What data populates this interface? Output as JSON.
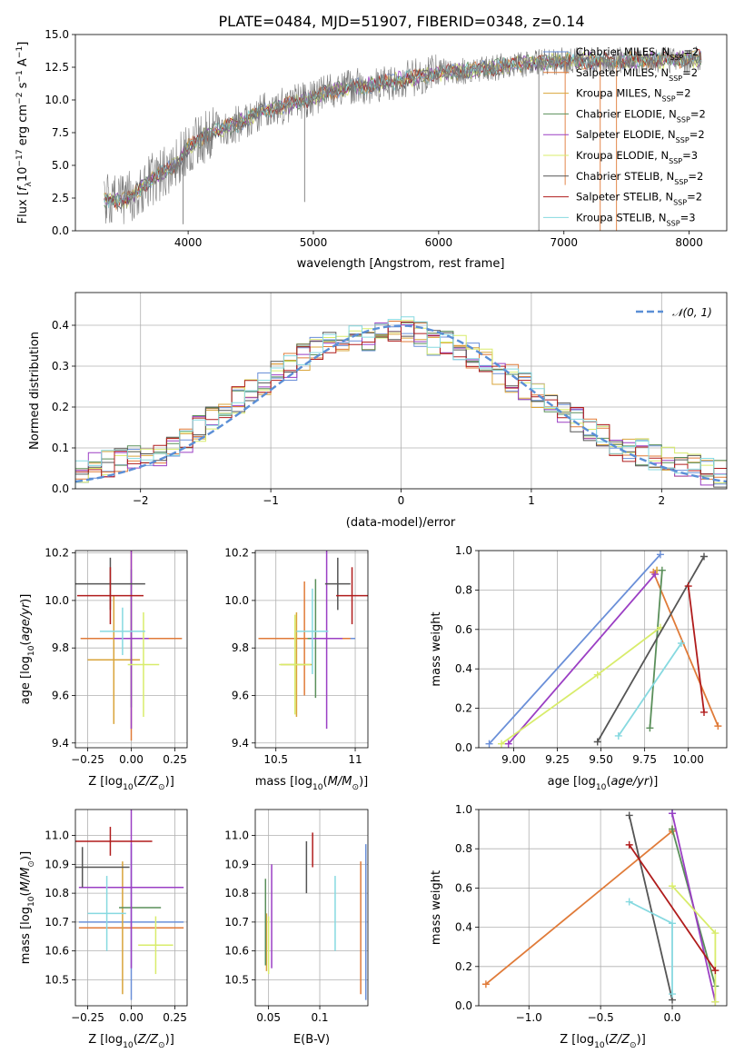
{
  "figure": {
    "title": "PLATE=0484, MJD=51907, FIBERID=0348, z=0.14"
  },
  "colors": [
    "#6a8fd8",
    "#e07b39",
    "#d9a43a",
    "#5a8f5a",
    "#9b3fc4",
    "#d8ec6b",
    "#555555",
    "#b01c1c",
    "#86d9e0"
  ],
  "chart_data": [
    {
      "type": "line",
      "title": "PLATE=0484, MJD=51907, FIBERID=0348, z=0.14",
      "xlabel": "wavelength [Angstrom, rest frame]",
      "ylabel": "Flux [f_λ 10^-17 erg cm^-2 s^-1 A^-1]",
      "xlim": [
        3100,
        8300
      ],
      "ylim": [
        0,
        15
      ],
      "xticks": [
        4000,
        5000,
        6000,
        7000,
        8000
      ],
      "yticks": [
        0.0,
        2.5,
        5.0,
        7.5,
        10.0,
        12.5,
        15.0
      ],
      "legend_position": "upper-right",
      "data_spectrum": {
        "name": "data",
        "x": [
          3330,
          3500,
          3700,
          3900,
          4000,
          4200,
          4400,
          4600,
          4800,
          5000,
          5200,
          5500,
          5800,
          6000,
          6300,
          6600,
          7000,
          7400,
          8000,
          8100
        ],
        "y": [
          2.4,
          2.3,
          3.9,
          5.0,
          6.4,
          7.6,
          8.2,
          9.2,
          9.6,
          10.2,
          10.8,
          11.2,
          11.7,
          12.1,
          12.3,
          12.7,
          13.0,
          13.0,
          13.1,
          13.2
        ]
      },
      "models": [
        {
          "name": "Chabrier MILES, N_SSP=2",
          "label_base": "Chabrier MILES, N",
          "label_sub": "SSP",
          "label_suffix": "=2",
          "color": "#6a8fd8"
        },
        {
          "name": "Salpeter MILES, N_SSP=2",
          "label_base": "Salpeter MILES, N",
          "label_sub": "SSP",
          "label_suffix": "=2",
          "color": "#e07b39"
        },
        {
          "name": "Kroupa MILES, N_SSP=2",
          "label_base": "Kroupa MILES, N",
          "label_sub": "SSP",
          "label_suffix": "=2",
          "color": "#d9a43a"
        },
        {
          "name": "Chabrier ELODIE, N_SSP=2",
          "label_base": "Chabrier ELODIE, N",
          "label_sub": "SSP",
          "label_suffix": "=2",
          "color": "#5a8f5a"
        },
        {
          "name": "Salpeter ELODIE, N_SSP=2",
          "label_base": "Salpeter ELODIE, N",
          "label_sub": "SSP",
          "label_suffix": "=2",
          "color": "#9b3fc4"
        },
        {
          "name": "Kroupa ELODIE, N_SSP=3",
          "label_base": "Kroupa ELODIE, N",
          "label_sub": "SSP",
          "label_suffix": "=3",
          "color": "#d8ec6b"
        },
        {
          "name": "Chabrier STELIB, N_SSP=2",
          "label_base": "Chabrier STELIB, N",
          "label_sub": "SSP",
          "label_suffix": "=2",
          "color": "#555555"
        },
        {
          "name": "Salpeter STELIB, N_SSP=2",
          "label_base": "Salpeter STELIB, N",
          "label_sub": "SSP",
          "label_suffix": "=2",
          "color": "#b01c1c"
        },
        {
          "name": "Kroupa STELIB, N_SSP=3",
          "label_base": "Kroupa STELIB, N",
          "label_sub": "SSP",
          "label_suffix": "=3",
          "color": "#86d9e0"
        }
      ]
    },
    {
      "type": "line",
      "xlabel": "(data-model)/error",
      "ylabel": "Normed distribution",
      "xlim": [
        -2.5,
        2.5
      ],
      "ylim": [
        0,
        0.48
      ],
      "xticks": [
        -2,
        -1,
        0,
        1,
        2
      ],
      "yticks": [
        0.0,
        0.1,
        0.2,
        0.3,
        0.4
      ],
      "grid": true,
      "legend_position": "upper-right",
      "reference_curve": {
        "name": "N(0,1)",
        "label": "𝒩(0, 1)",
        "color": "#5b8fd6",
        "mean": 0,
        "sigma": 1
      },
      "histogram_envelope": {
        "bins": [
          -2.5,
          -2.4,
          -2.3,
          -2.2,
          -2.1,
          -2.0,
          -1.9,
          -1.8,
          -1.7,
          -1.6,
          -1.5,
          -1.4,
          -1.3,
          -1.2,
          -1.1,
          -1.0,
          -0.9,
          -0.8,
          -0.7,
          -0.6,
          -0.5,
          -0.4,
          -0.3,
          -0.2,
          -0.1,
          0.0,
          0.1,
          0.2,
          0.3,
          0.4,
          0.5,
          0.6,
          0.7,
          0.8,
          0.9,
          1.0,
          1.1,
          1.2,
          1.3,
          1.4,
          1.5,
          1.6,
          1.7,
          1.8,
          1.9,
          2.0,
          2.1,
          2.2,
          2.3,
          2.4,
          2.5
        ],
        "heights": [
          0.05,
          0.055,
          0.06,
          0.07,
          0.075,
          0.08,
          0.09,
          0.1,
          0.12,
          0.15,
          0.18,
          0.2,
          0.22,
          0.24,
          0.26,
          0.28,
          0.3,
          0.32,
          0.34,
          0.35,
          0.37,
          0.38,
          0.37,
          0.38,
          0.38,
          0.39,
          0.38,
          0.36,
          0.36,
          0.35,
          0.33,
          0.31,
          0.29,
          0.27,
          0.25,
          0.23,
          0.21,
          0.19,
          0.17,
          0.15,
          0.13,
          0.11,
          0.1,
          0.09,
          0.08,
          0.07,
          0.06,
          0.05,
          0.04,
          0.035
        ]
      }
    },
    {
      "type": "scatter",
      "xlabel": "Z [log10(Z/Z☉)]",
      "ylabel": "age [log10(age/yr)]",
      "xlim": [
        -0.32,
        0.32
      ],
      "ylim": [
        9.38,
        10.21
      ],
      "xticks": [
        -0.25,
        0.0,
        0.25
      ],
      "xtick_labels": [
        "−0.25",
        "0.00",
        "0.25"
      ],
      "yticks": [
        9.4,
        9.6,
        9.8,
        10.0,
        10.2
      ],
      "grid": true,
      "errorbars": [
        {
          "x": 0.0,
          "xerr": 0.29,
          "y": 9.84,
          "yerr": 0.0,
          "color": "#6a8fd8"
        },
        {
          "x": 0.0,
          "xerr": 0.29,
          "y": 9.84,
          "yerr": 0.43,
          "color": "#e07b39"
        },
        {
          "x": -0.1,
          "xerr": 0.15,
          "y": 9.75,
          "yerr": 0.27,
          "color": "#d9a43a"
        },
        {
          "x": 0.0,
          "xerr": 0.0,
          "y": 9.84,
          "yerr": 0.29,
          "color": "#5a8f5a"
        },
        {
          "x": 0.0,
          "xerr": 0.1,
          "y": 9.84,
          "yerr": 0.38,
          "color": "#9b3fc4"
        },
        {
          "x": 0.07,
          "xerr": 0.09,
          "y": 9.73,
          "yerr": 0.22,
          "color": "#d8ec6b"
        },
        {
          "x": -0.12,
          "xerr": 0.2,
          "y": 10.07,
          "yerr": 0.11,
          "color": "#555555"
        },
        {
          "x": -0.12,
          "xerr": 0.19,
          "y": 10.02,
          "yerr": 0.12,
          "color": "#b01c1c"
        },
        {
          "x": -0.05,
          "xerr": 0.13,
          "y": 9.87,
          "yerr": 0.1,
          "color": "#86d9e0"
        }
      ]
    },
    {
      "type": "scatter",
      "xlabel": "mass [log10(M/M☉)]",
      "xlim": [
        10.37,
        11.08
      ],
      "ylim": [
        9.38,
        10.21
      ],
      "xticks": [
        10.5,
        11.0
      ],
      "yticks": [
        9.4,
        9.6,
        9.8,
        10.0,
        10.2
      ],
      "grid": true,
      "errorbars": [
        {
          "x": 10.7,
          "xerr": 0.3,
          "y": 9.84,
          "yerr": 0.0,
          "color": "#6a8fd8"
        },
        {
          "x": 10.68,
          "xerr": 0.29,
          "y": 9.84,
          "yerr": 0.24,
          "color": "#e07b39"
        },
        {
          "x": 10.63,
          "xerr": 0.1,
          "y": 9.73,
          "yerr": 0.22,
          "color": "#d9a43a"
        },
        {
          "x": 10.75,
          "xerr": 0.05,
          "y": 9.84,
          "yerr": 0.25,
          "color": "#5a8f5a"
        },
        {
          "x": 10.82,
          "xerr": 0.1,
          "y": 9.84,
          "yerr": 0.38,
          "color": "#9b3fc4"
        },
        {
          "x": 10.62,
          "xerr": 0.1,
          "y": 9.73,
          "yerr": 0.21,
          "color": "#d8ec6b"
        },
        {
          "x": 10.89,
          "xerr": 0.08,
          "y": 10.07,
          "yerr": 0.11,
          "color": "#555555"
        },
        {
          "x": 10.98,
          "xerr": 0.1,
          "y": 10.02,
          "yerr": 0.12,
          "color": "#b01c1c"
        },
        {
          "x": 10.73,
          "xerr": 0.1,
          "y": 9.87,
          "yerr": 0.18,
          "color": "#86d9e0"
        }
      ]
    },
    {
      "type": "line",
      "xlabel": "age [log10(age/yr)]",
      "ylabel": "mass weight",
      "xlim": [
        8.8,
        10.22
      ],
      "ylim": [
        0.0,
        1.0
      ],
      "xticks": [
        9.0,
        9.25,
        9.5,
        9.75,
        10.0
      ],
      "xtick_labels": [
        "9.00",
        "9.25",
        "9.50",
        "9.75",
        "10.00"
      ],
      "yticks": [
        0.0,
        0.2,
        0.4,
        0.6,
        0.8,
        1.0
      ],
      "grid": true,
      "series": [
        {
          "color": "#6a8fd8",
          "x": [
            8.86,
            9.84
          ],
          "y": [
            0.02,
            0.98
          ]
        },
        {
          "color": "#e07b39",
          "x": [
            9.8,
            10.17
          ],
          "y": [
            0.89,
            0.11
          ]
        },
        {
          "color": "#d9a43a",
          "x": [
            9.82,
            9.82
          ],
          "y": [
            0.9,
            0.9
          ]
        },
        {
          "color": "#5a8f5a",
          "x": [
            9.78,
            9.85
          ],
          "y": [
            0.1,
            0.9
          ]
        },
        {
          "color": "#9b3fc4",
          "x": [
            8.97,
            9.81
          ],
          "y": [
            0.02,
            0.88
          ]
        },
        {
          "color": "#d8ec6b",
          "x": [
            8.93,
            9.48,
            9.84
          ],
          "y": [
            0.02,
            0.37,
            0.61
          ]
        },
        {
          "color": "#555555",
          "x": [
            9.48,
            10.09
          ],
          "y": [
            0.03,
            0.97
          ]
        },
        {
          "color": "#b01c1c",
          "x": [
            10.0,
            10.09
          ],
          "y": [
            0.82,
            0.18
          ]
        },
        {
          "color": "#86d9e0",
          "x": [
            9.6,
            9.96
          ],
          "y": [
            0.06,
            0.53
          ]
        }
      ]
    },
    {
      "type": "scatter",
      "xlabel": "Z [log10(Z/Z☉)]",
      "ylabel": "mass [log10(M/M☉)]",
      "xlim": [
        -0.32,
        0.32
      ],
      "ylim": [
        10.41,
        11.09
      ],
      "xticks": [
        -0.25,
        0.0,
        0.25
      ],
      "xtick_labels": [
        "−0.25",
        "0.00",
        "0.25"
      ],
      "yticks": [
        10.5,
        10.6,
        10.7,
        10.8,
        10.9,
        11.0
      ],
      "grid": true,
      "errorbars": [
        {
          "x": 0.0,
          "xerr": 0.3,
          "y": 10.7,
          "yerr": 0.27,
          "color": "#6a8fd8"
        },
        {
          "x": 0.0,
          "xerr": 0.3,
          "y": 10.68,
          "yerr": 0.0,
          "color": "#e07b39"
        },
        {
          "x": -0.05,
          "xerr": 0.0,
          "y": 10.68,
          "yerr": 0.23,
          "color": "#d9a43a"
        },
        {
          "x": 0.05,
          "xerr": 0.12,
          "y": 10.75,
          "yerr": 0.0,
          "color": "#5a8f5a"
        },
        {
          "x": 0.0,
          "xerr": 0.3,
          "y": 10.82,
          "yerr": 0.28,
          "color": "#9b3fc4"
        },
        {
          "x": 0.14,
          "xerr": 0.1,
          "y": 10.62,
          "yerr": 0.1,
          "color": "#d8ec6b"
        },
        {
          "x": -0.28,
          "xerr": 0.27,
          "y": 10.89,
          "yerr": 0.07,
          "color": "#555555"
        },
        {
          "x": -0.12,
          "xerr": 0.24,
          "y": 10.98,
          "yerr": 0.05,
          "color": "#b01c1c"
        },
        {
          "x": -0.14,
          "xerr": 0.11,
          "y": 10.73,
          "yerr": 0.13,
          "color": "#86d9e0"
        }
      ]
    },
    {
      "type": "scatter",
      "xlabel": "E(B-V)",
      "xlim": [
        0.037,
        0.147
      ],
      "ylim": [
        10.41,
        11.09
      ],
      "xticks": [
        0.05,
        0.1
      ],
      "yticks": [
        10.5,
        10.6,
        10.7,
        10.8,
        10.9,
        11.0
      ],
      "grid": true,
      "errorbars": [
        {
          "x": 0.145,
          "xerr": 0.0,
          "y": 10.7,
          "yerr": 0.27,
          "color": "#6a8fd8"
        },
        {
          "x": 0.14,
          "xerr": 0.0,
          "y": 10.68,
          "yerr": 0.23,
          "color": "#e07b39"
        },
        {
          "x": 0.048,
          "xerr": 0.0,
          "y": 10.63,
          "yerr": 0.1,
          "color": "#d9a43a"
        },
        {
          "x": 0.047,
          "xerr": 0.0,
          "y": 10.7,
          "yerr": 0.15,
          "color": "#5a8f5a"
        },
        {
          "x": 0.053,
          "xerr": 0.0,
          "y": 10.72,
          "yerr": 0.18,
          "color": "#9b3fc4"
        },
        {
          "x": 0.05,
          "xerr": 0.0,
          "y": 10.62,
          "yerr": 0.1,
          "color": "#d8ec6b"
        },
        {
          "x": 0.087,
          "xerr": 0.0,
          "y": 10.89,
          "yerr": 0.09,
          "color": "#555555"
        },
        {
          "x": 0.093,
          "xerr": 0.0,
          "y": 10.95,
          "yerr": 0.06,
          "color": "#b01c1c"
        },
        {
          "x": 0.115,
          "xerr": 0.0,
          "y": 10.73,
          "yerr": 0.13,
          "color": "#86d9e0"
        }
      ]
    },
    {
      "type": "line",
      "xlabel": "Z [log10(Z/Z☉)]",
      "ylabel": "mass weight",
      "xlim": [
        -1.35,
        0.38
      ],
      "ylim": [
        0.0,
        1.0
      ],
      "xticks": [
        -1.0,
        -0.5,
        0.0
      ],
      "xtick_labels": [
        "−1.0",
        "−0.5",
        "0.0"
      ],
      "yticks": [
        0.0,
        0.2,
        0.4,
        0.6,
        0.8,
        1.0
      ],
      "grid": true,
      "series": [
        {
          "color": "#6a8fd8",
          "x": [
            0.0,
            0.0
          ],
          "y": [
            0.98,
            0.98
          ]
        },
        {
          "color": "#e07b39",
          "x": [
            -1.3,
            0.0
          ],
          "y": [
            0.11,
            0.89
          ]
        },
        {
          "color": "#d9a43a",
          "x": [
            0.0,
            0.0
          ],
          "y": [
            0.9,
            0.9
          ]
        },
        {
          "color": "#5a8f5a",
          "x": [
            0.0,
            0.3
          ],
          "y": [
            0.9,
            0.1
          ]
        },
        {
          "color": "#9b3fc4",
          "x": [
            0.0,
            0.3
          ],
          "y": [
            0.98,
            0.02
          ]
        },
        {
          "color": "#d8ec6b",
          "x": [
            0.0,
            0.3,
            0.3
          ],
          "y": [
            0.61,
            0.37,
            0.02
          ]
        },
        {
          "color": "#555555",
          "x": [
            -0.3,
            0.0
          ],
          "y": [
            0.97,
            0.03
          ]
        },
        {
          "color": "#b01c1c",
          "x": [
            -0.3,
            0.3
          ],
          "y": [
            0.82,
            0.18
          ]
        },
        {
          "color": "#86d9e0",
          "x": [
            -0.3,
            0.0,
            0.0
          ],
          "y": [
            0.53,
            0.42,
            0.06
          ]
        }
      ]
    }
  ],
  "axis_text": {
    "spec_xlabel": "wavelength [Angstrom, rest frame]",
    "resid_xlabel": "(data-model)/error",
    "resid_ylabel": "Normed distribution",
    "mass_weight": "mass weight",
    "ebv": "E(B-V)"
  }
}
